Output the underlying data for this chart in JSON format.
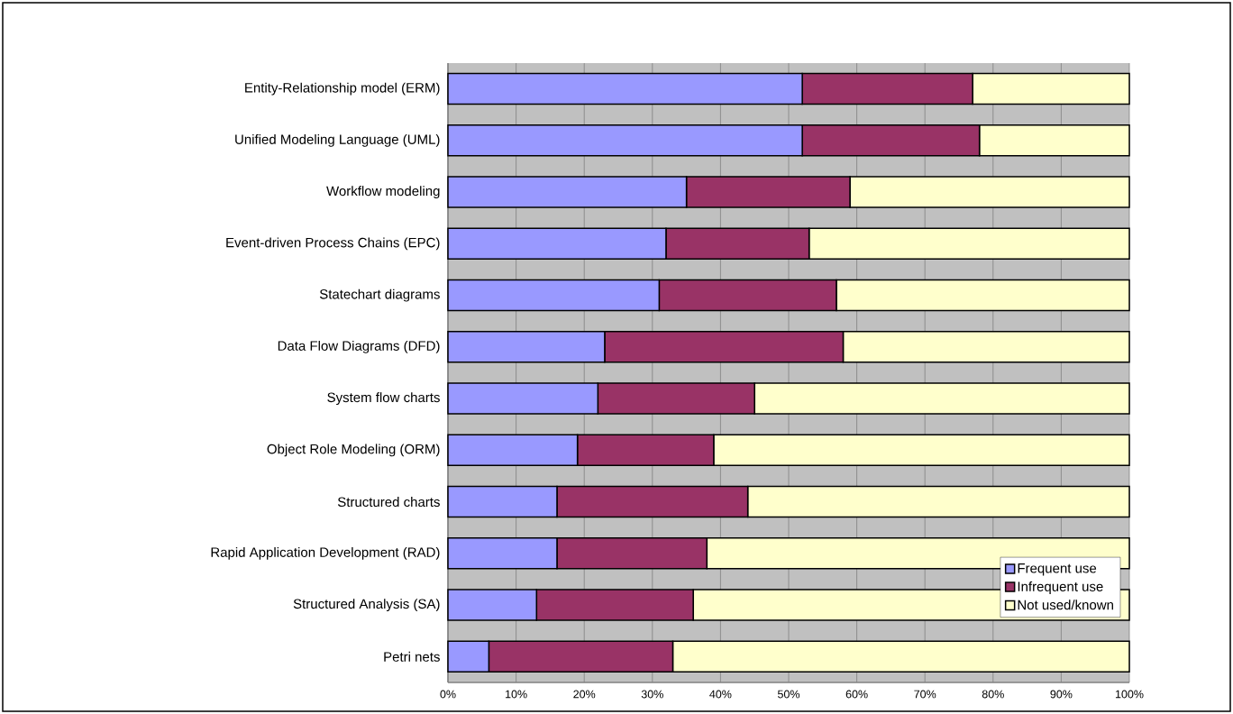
{
  "chart_data": {
    "type": "bar",
    "orientation": "horizontal",
    "stacked": true,
    "categories": [
      "Entity-Relationship model (ERM)",
      "Unified Modeling Language (UML)",
      "Workflow modeling",
      "Event-driven Process Chains (EPC)",
      "Statechart diagrams",
      "Data Flow Diagrams (DFD)",
      "System flow charts",
      "Object Role Modeling (ORM)",
      "Structured charts",
      "Rapid Application Development (RAD)",
      "Structured Analysis (SA)",
      "Petri nets"
    ],
    "series": [
      {
        "name": "Frequent use",
        "color": "#9999ff",
        "values": [
          52,
          52,
          35,
          32,
          31,
          23,
          22,
          19,
          16,
          16,
          13,
          6
        ]
      },
      {
        "name": "Infrequent use",
        "color": "#993366",
        "values": [
          25,
          26,
          24,
          21,
          26,
          35,
          23,
          20,
          28,
          22,
          23,
          27
        ]
      },
      {
        "name": "Not used/known",
        "color": "#ffffcc",
        "values": [
          23,
          22,
          41,
          47,
          43,
          42,
          55,
          61,
          56,
          62,
          64,
          67
        ]
      }
    ],
    "xlim": [
      0,
      100
    ],
    "xticks": [
      {
        "value": 0,
        "label": "0%"
      },
      {
        "value": 10,
        "label": "10%"
      },
      {
        "value": 20,
        "label": "20%"
      },
      {
        "value": 30,
        "label": "30%"
      },
      {
        "value": 40,
        "label": "40%"
      },
      {
        "value": 50,
        "label": "50%"
      },
      {
        "value": 60,
        "label": "60%"
      },
      {
        "value": 70,
        "label": "70%"
      },
      {
        "value": 80,
        "label": "80%"
      },
      {
        "value": 90,
        "label": "90%"
      },
      {
        "value": 100,
        "label": "100%"
      }
    ],
    "grid": "x",
    "legend": "bottom right"
  }
}
